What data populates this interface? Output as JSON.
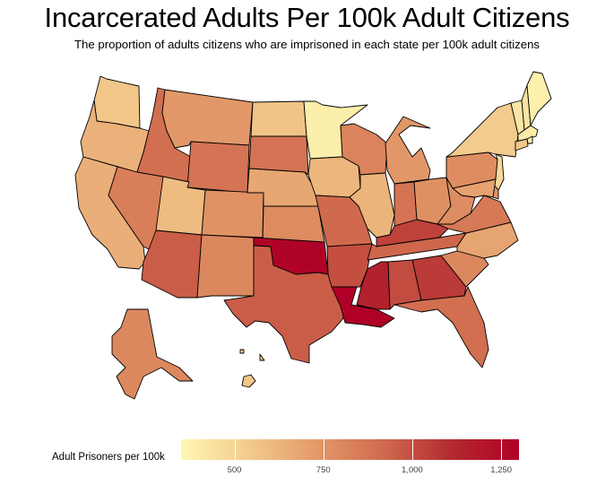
{
  "title": "Incarcerated Adults Per 100k Adult Citizens",
  "subtitle": "The proportion of adults citizens who are imprisoned in each state per 100k adult citizens",
  "chart_data": {
    "type": "choropleth",
    "title": "Incarcerated Adults Per 100k Adult Citizens",
    "subtitle": "The proportion of adults citizens who are imprisoned in each state per 100k adult citizens",
    "legend": {
      "title": "Adult Prisoners per 100k",
      "placement": "bottom",
      "range": [
        350,
        1300
      ],
      "ticks": [
        500,
        750,
        1000,
        1250
      ],
      "tick_labels": [
        "500",
        "750",
        "1,000",
        "1,250"
      ],
      "colors": [
        "#fff7b3",
        "#f3cb8c",
        "#e39a69",
        "#d06a4e",
        "#b32a30",
        "#b00026"
      ]
    },
    "states": [
      {
        "name": "WA",
        "value": 560
      },
      {
        "name": "OR",
        "value": 640
      },
      {
        "name": "CA",
        "value": 650
      },
      {
        "name": "ID",
        "value": 900
      },
      {
        "name": "NV",
        "value": 840
      },
      {
        "name": "MT",
        "value": 740
      },
      {
        "name": "WY",
        "value": 880
      },
      {
        "name": "UT",
        "value": 600
      },
      {
        "name": "AZ",
        "value": 960
      },
      {
        "name": "CO",
        "value": 760
      },
      {
        "name": "NM",
        "value": 800
      },
      {
        "name": "ND",
        "value": 570
      },
      {
        "name": "SD",
        "value": 880
      },
      {
        "name": "NE",
        "value": 680
      },
      {
        "name": "KS",
        "value": 790
      },
      {
        "name": "OK",
        "value": 1290
      },
      {
        "name": "TX",
        "value": 960
      },
      {
        "name": "MN",
        "value": 390
      },
      {
        "name": "IA",
        "value": 620
      },
      {
        "name": "MO",
        "value": 920
      },
      {
        "name": "AR",
        "value": 1000
      },
      {
        "name": "LA",
        "value": 1300
      },
      {
        "name": "WI",
        "value": 820
      },
      {
        "name": "IL",
        "value": 630
      },
      {
        "name": "MI",
        "value": 740
      },
      {
        "name": "IN",
        "value": 880
      },
      {
        "name": "OH",
        "value": 770
      },
      {
        "name": "KY",
        "value": 1040
      },
      {
        "name": "TN",
        "value": 930
      },
      {
        "name": "MS",
        "value": 1150
      },
      {
        "name": "AL",
        "value": 1010
      },
      {
        "name": "GA",
        "value": 1060
      },
      {
        "name": "FL",
        "value": 900
      },
      {
        "name": "SC",
        "value": 800
      },
      {
        "name": "NC",
        "value": 690
      },
      {
        "name": "VA",
        "value": 860
      },
      {
        "name": "WV",
        "value": 780
      },
      {
        "name": "PA",
        "value": 780
      },
      {
        "name": "NY",
        "value": 540
      },
      {
        "name": "VT",
        "value": 420
      },
      {
        "name": "NH",
        "value": 430
      },
      {
        "name": "ME",
        "value": 380
      },
      {
        "name": "MA",
        "value": 400
      },
      {
        "name": "RI",
        "value": 400
      },
      {
        "name": "CT",
        "value": 560
      },
      {
        "name": "NJ",
        "value": 480
      },
      {
        "name": "DE",
        "value": 760
      },
      {
        "name": "MD",
        "value": 700
      },
      {
        "name": "AK",
        "value": 800
      },
      {
        "name": "HI",
        "value": 560
      }
    ]
  }
}
